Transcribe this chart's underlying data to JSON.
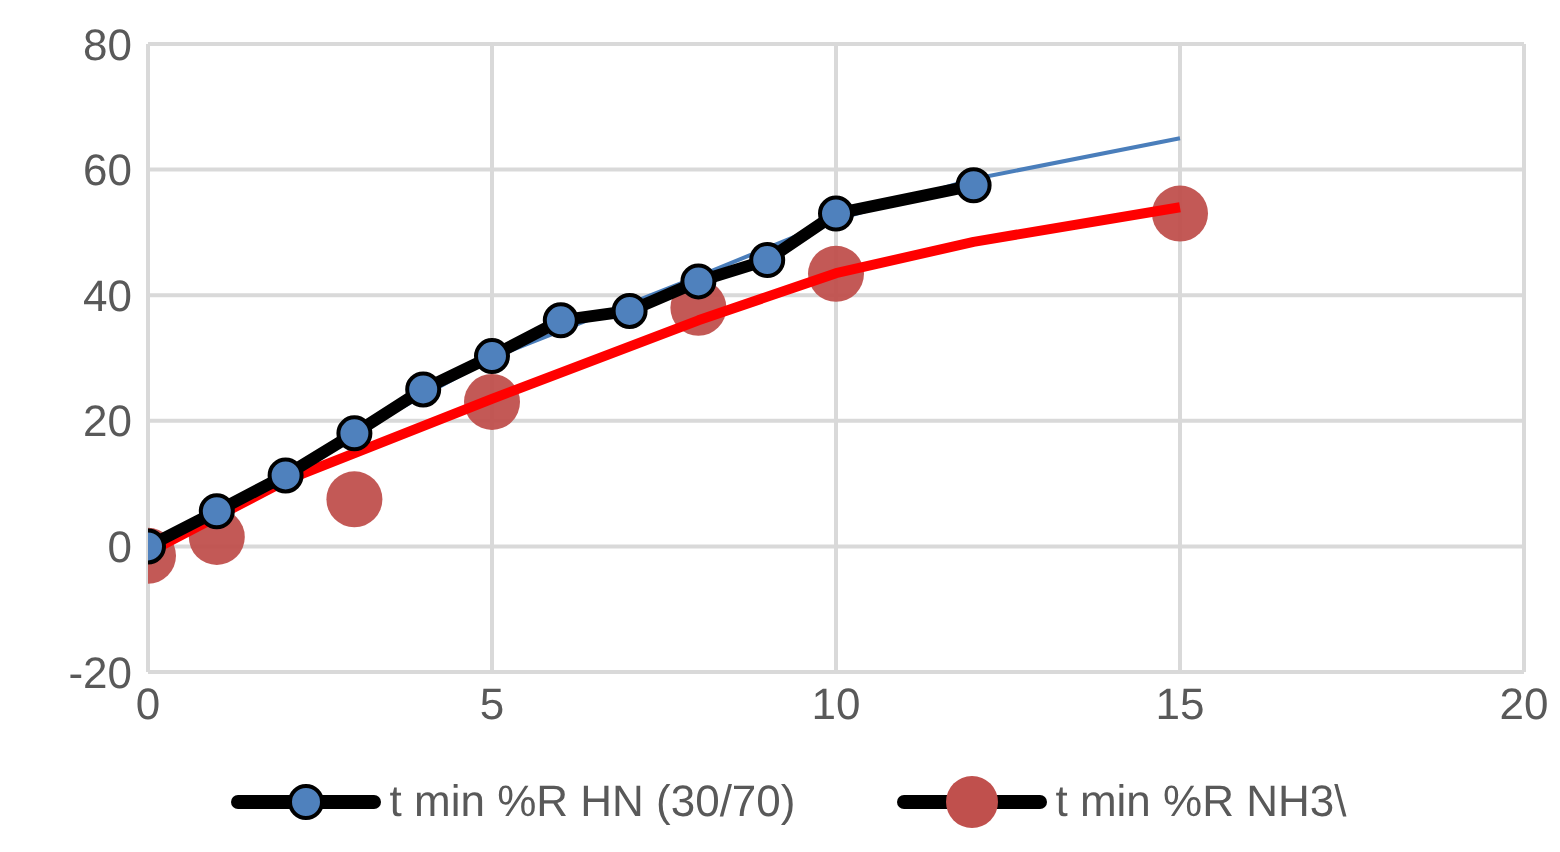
{
  "chart_data": {
    "type": "line",
    "xlim": [
      0,
      20
    ],
    "xticks": [
      0,
      5,
      10,
      15,
      20
    ],
    "ylim": [
      -20,
      80
    ],
    "yticks": [
      -20,
      0,
      20,
      40,
      60,
      80
    ],
    "grid": true,
    "legend": "bottom",
    "series": [
      {
        "name": "t min %R HN (30/70)",
        "type": "line",
        "marker": "circle",
        "color": "#4f81bd",
        "x": [
          0,
          1,
          2,
          3,
          4,
          5,
          6,
          7,
          8,
          9,
          10,
          12
        ],
        "values": [
          0,
          5.6,
          11.3,
          18,
          25,
          30.3,
          36,
          37.5,
          42.2,
          45.6,
          53,
          57.5
        ]
      },
      {
        "name": "t min %R NH3\\",
        "type": "scatter",
        "marker": "circle",
        "color": "#c0504d",
        "x": [
          0,
          1,
          3,
          5,
          8,
          10,
          15
        ],
        "values": [
          -1.5,
          1.5,
          7.5,
          23,
          38,
          43.4,
          53
        ]
      },
      {
        "type": "line",
        "marker": "none",
        "color": "#4a7ebb",
        "x": [
          0,
          2,
          5,
          8,
          10,
          12,
          15
        ],
        "values": [
          0,
          12,
          30,
          43,
          52,
          58.5,
          65
        ]
      },
      {
        "type": "line",
        "marker": "none",
        "color": "#ff0000",
        "x": [
          0,
          2,
          5,
          8,
          10,
          12,
          15
        ],
        "values": [
          -1,
          10.5,
          23.5,
          36,
          43.5,
          48.5,
          54
        ]
      }
    ]
  }
}
